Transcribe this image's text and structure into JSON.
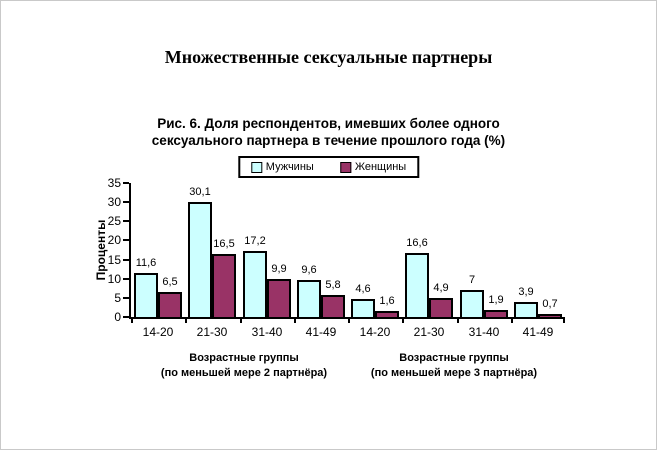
{
  "page_title": "Множественные сексуальные партнеры",
  "chart_data": {
    "type": "bar",
    "title": "Рис. 6. Доля респондентов, имевших более одного сексуального партнера в течение прошлого года (%)",
    "title_lines": [
      "Рис. 6. Доля респондентов, имевших более одного",
      "сексуального партнера в течение прошлого года (%)"
    ],
    "categories": [
      "14-20",
      "21-30",
      "31-40",
      "41-49",
      "14-20",
      "21-30",
      "31-40",
      "41-49"
    ],
    "series": [
      {
        "name": "Мужчины",
        "color": "#CCFFFF",
        "values": [
          11.6,
          30.1,
          17.2,
          9.6,
          4.6,
          16.6,
          7,
          3.9
        ]
      },
      {
        "name": "Женщины",
        "color": "#993366",
        "values": [
          6.5,
          16.5,
          9.9,
          5.8,
          1.6,
          4.9,
          1.9,
          0.7
        ]
      }
    ],
    "xlabel": "",
    "ylabel": "Проценты",
    "ylim": [
      0,
      35
    ],
    "ytick_step": 5,
    "group_labels": [
      {
        "line1": "Возрастные группы",
        "line2": "(по меньшей мере 2 партнёра)"
      },
      {
        "line1": "Возрастные группы",
        "line2": "(по меньшей мере 3 партнёра)"
      }
    ],
    "decimal_separator": ",",
    "legend_position": "top",
    "grid": false,
    "bar_border_color": "#000000",
    "background": "#ffffff"
  }
}
